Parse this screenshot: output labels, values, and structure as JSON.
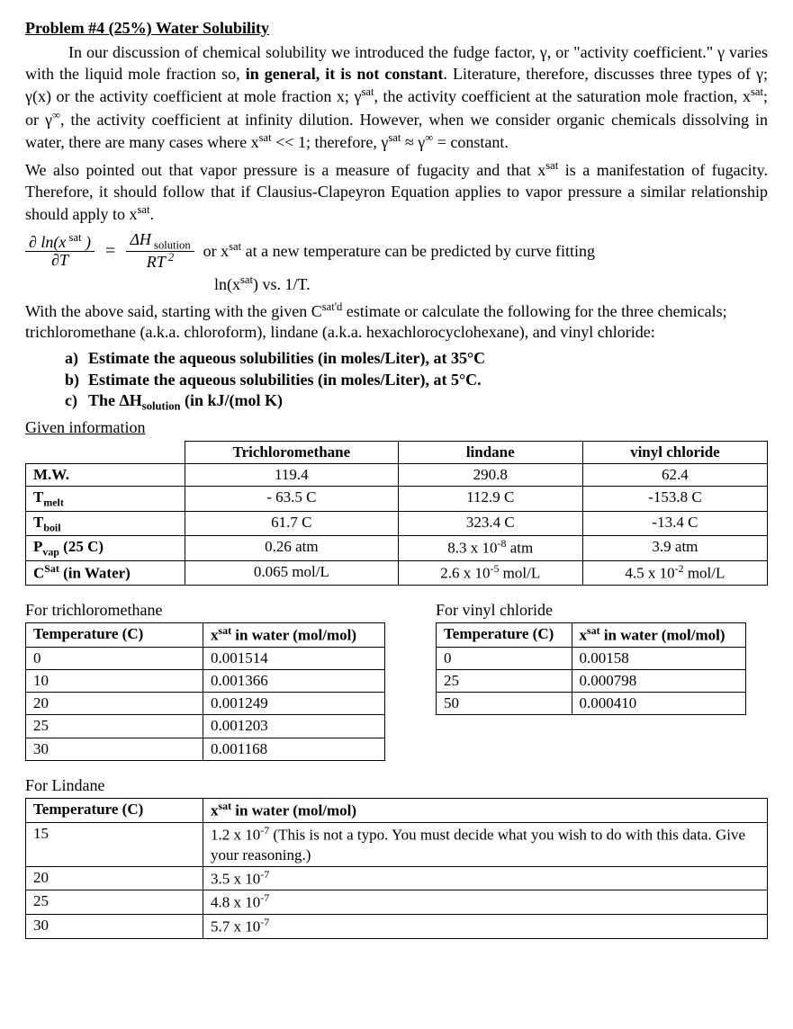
{
  "title": "Problem #4 (25%) Water Solubility",
  "para1_html": "In our discussion of chemical solubility we introduced the fudge factor, γ, or \"activity coefficient.\" γ varies with the liquid mole fraction so, <b>in general, it is not constant</b>. Literature, therefore, discusses three types of γ; γ(x) or the activity coefficient at mole fraction x; γ<sup>sat</sup>, the activity coefficient at the saturation mole fraction, x<sup>sat</sup>; or γ<sup>∞</sup>, the activity coefficient at infinity dilution. However, when we consider organic chemicals dissolving in water, there are many cases where x<sup>sat</sup> &lt;&lt; 1; therefore, γ<sup>sat</sup> ≈ γ<sup>∞</sup> = constant.",
  "para2_html": "We also pointed out that vapor pressure is a measure of fugacity and that x<sup>sat</sup> is a manifestation of fugacity. Therefore, it should follow that if Clausius-Clapeyron Equation applies to vapor pressure a similar relationship should apply to x<sup>sat</sup>.",
  "equation": {
    "lhs_num_html": "∂ ln(x<sup style='font-style:normal;'>&nbsp;sat</sup>&nbsp;)",
    "lhs_den_html": "∂T",
    "rhs_num_html": "ΔH<sub style='font-style:normal;'>&nbsp;solution</sub>",
    "rhs_den_html": "RT<sup>&nbsp;2</sup>",
    "tail_html": "or x<sup>sat</sup> at a new temperature can be predicted by curve fitting"
  },
  "center_line_html": "ln(x<sup>sat</sup>) vs. 1/T.",
  "para3_html": "With the above said, starting with the given C<sup>sat'd</sup> estimate or calculate the following for the three chemicals; trichloromethane (a.k.a. chloroform), lindane (a.k.a. hexachlorocyclohexane), and vinyl chloride:",
  "parts": {
    "a": "Estimate the aqueous solubilities (in moles/Liter), at 35°C",
    "b": "Estimate the aqueous solubilities (in moles/Liter), at 5°C.",
    "c_html": "The ΔH<sub>solution</sub> (in kJ/(mol K)"
  },
  "given_label": "Given information",
  "main_table": {
    "headers": [
      "",
      "Trichloromethane",
      "lindane",
      "vinyl chloride"
    ],
    "rows": [
      {
        "label_html": "M.W.",
        "c1": "119.4",
        "c2": "290.8",
        "c3": "62.4"
      },
      {
        "label_html": "T<sub>melt</sub>",
        "c1": "- 63.5 C",
        "c2": "112.9 C",
        "c3": "-153.8 C"
      },
      {
        "label_html": "T<sub>boil</sub>",
        "c1": "61.7 C",
        "c2": "323.4 C",
        "c3": "-13.4 C"
      },
      {
        "label_html": "P<sub>vap</sub> (25 C)",
        "c1": "0.26 atm",
        "c2_html": "8.3 x 10<sup>-8</sup> atm",
        "c3": "3.9 atm"
      },
      {
        "label_html": "C<sup>Sat</sup> (in Water)",
        "c1": "0.065 mol/L",
        "c2_html": "2.6 x 10<sup>-5</sup> mol/L",
        "c3_html": "4.5 x 10<sup>-2</sup> mol/L"
      }
    ]
  },
  "tcm": {
    "caption": "For trichloromethane",
    "h1": "Temperature (C)",
    "h2_html": "x<sup>sat</sup> in water (mol/mol)",
    "rows": [
      [
        "0",
        "0.001514"
      ],
      [
        "10",
        "0.001366"
      ],
      [
        "20",
        "0.001249"
      ],
      [
        "25",
        "0.001203"
      ],
      [
        "30",
        "0.001168"
      ]
    ]
  },
  "vc": {
    "caption": "For vinyl chloride",
    "h1": "Temperature (C)",
    "h2_html": "x<sup>sat</sup> in water (mol/mol)",
    "rows": [
      [
        "0",
        "0.00158"
      ],
      [
        "25",
        "0.000798"
      ],
      [
        "50",
        "0.000410"
      ]
    ]
  },
  "lindane": {
    "caption": "For Lindane",
    "h1": "Temperature (C)",
    "h2_html": "x<sup>sat</sup> in water (mol/mol)",
    "rows": [
      {
        "t": "15",
        "v_html": "1.2 x 10<sup>-7</sup> (This is not a typo.  You must decide what you wish to do with this data.  Give your reasoning.)"
      },
      {
        "t": "20",
        "v_html": "3.5 x 10<sup>-7</sup>"
      },
      {
        "t": "25",
        "v_html": "4.8 x 10<sup>-7</sup>"
      },
      {
        "t": "30",
        "v_html": "5.7 x 10<sup>-7</sup>"
      }
    ]
  }
}
